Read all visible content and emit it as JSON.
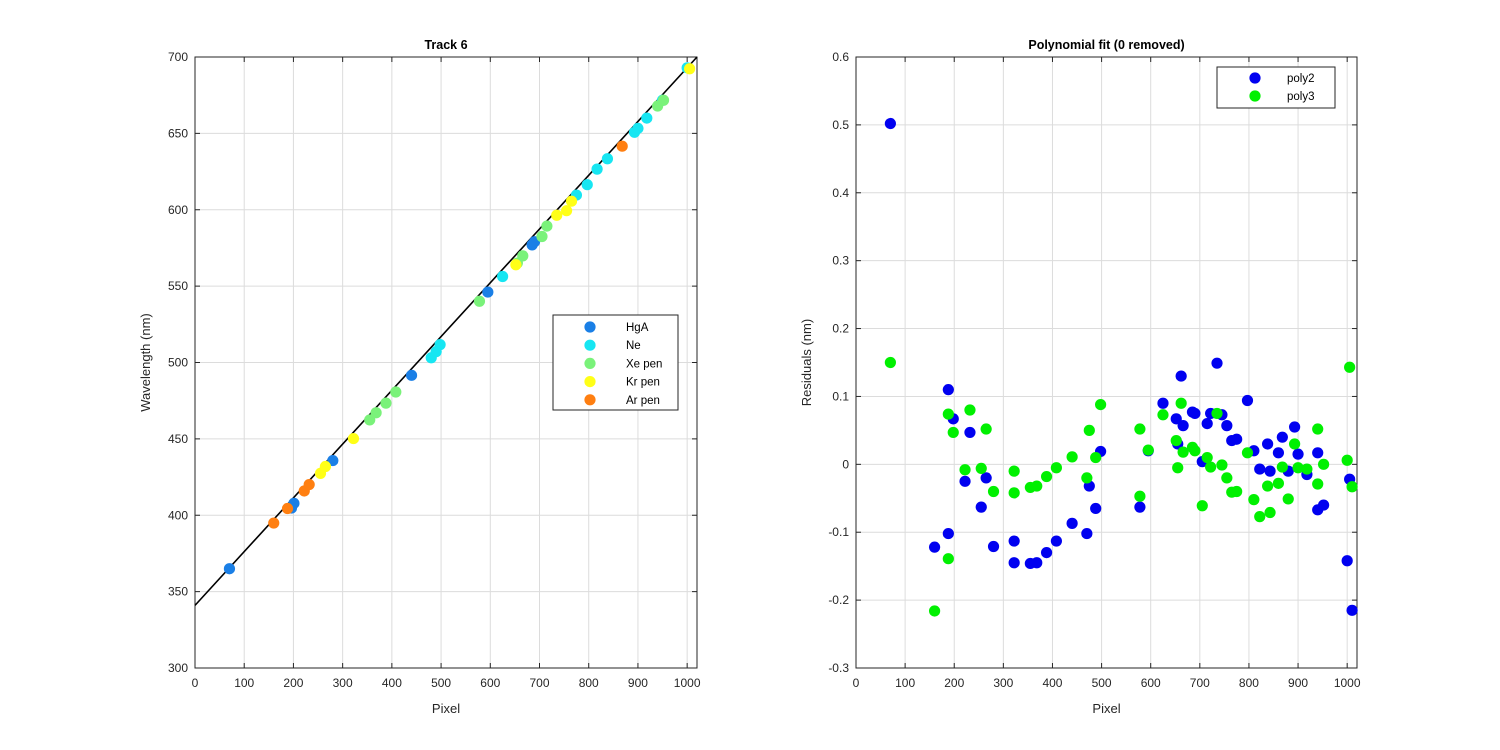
{
  "colors": {
    "HgA": "#1a7fe6",
    "Ne": "#17e6f2",
    "Xe pen": "#7af27a",
    "Kr pen": "#ffff17",
    "Ar pen": "#ff7f11",
    "poly2": "#0000f0",
    "poly3": "#00f000",
    "fit_line": "#000000",
    "grid": "#dcdcdc"
  },
  "chart_data": [
    {
      "type": "scatter",
      "title": "Track 6",
      "xlabel": "Pixel",
      "ylabel": "Wavelength (nm)",
      "xlim": [
        0,
        1020
      ],
      "ylim": [
        300,
        700
      ],
      "xticks": [
        0,
        100,
        200,
        300,
        400,
        500,
        600,
        700,
        800,
        900,
        1000
      ],
      "yticks": [
        300,
        350,
        400,
        450,
        500,
        550,
        600,
        650,
        700
      ],
      "grid": true,
      "legend_position": "right",
      "series": [
        {
          "name": "HgA",
          "points": [
            [
              70,
              365.0
            ],
            [
              196,
              404.7
            ],
            [
              201,
              407.8
            ],
            [
              280,
              435.8
            ],
            [
              440,
              491.6
            ],
            [
              595,
              546.1
            ],
            [
              685,
              577.0
            ],
            [
              690,
              579.1
            ]
          ]
        },
        {
          "name": "Ne",
          "points": [
            [
              480,
              503.1
            ],
            [
              490,
              507.1
            ],
            [
              498,
              511.7
            ],
            [
              625,
              556.3
            ],
            [
              775,
              609.6
            ],
            [
              797,
              616.4
            ],
            [
              817,
              626.6
            ],
            [
              838,
              633.4
            ],
            [
              893,
              650.7
            ],
            [
              900,
              653.3
            ],
            [
              918,
              660.0
            ],
            [
              950,
              671.7
            ],
            [
              1000,
              692.9
            ]
          ]
        },
        {
          "name": "Xe pen",
          "points": [
            [
              355,
              462.4
            ],
            [
              368,
              467.1
            ],
            [
              388,
              473.4
            ],
            [
              408,
              480.7
            ],
            [
              578,
              540.1
            ],
            [
              655,
              565.1
            ],
            [
              666,
              569.8
            ],
            [
              705,
              582.5
            ],
            [
              715,
              589.3
            ],
            [
              940,
              667.9
            ],
            [
              952,
              671.7
            ]
          ]
        },
        {
          "name": "Kr pen",
          "points": [
            [
              255,
              427.4
            ],
            [
              265,
              431.9
            ],
            [
              322,
              450.2
            ],
            [
              652,
              564.0
            ],
            [
              735,
              596.4
            ],
            [
              755,
              599.4
            ],
            [
              765,
              605.6
            ],
            [
              1005,
              692.3
            ]
          ]
        },
        {
          "name": "Ar pen",
          "points": [
            [
              160,
              394.9
            ],
            [
              188,
              404.4
            ],
            [
              222,
              415.9
            ],
            [
              232,
              420.1
            ],
            [
              868,
              641.6
            ]
          ]
        }
      ],
      "fit_line": {
        "x": [
          0,
          1020
        ],
        "y": [
          341.0,
          700.0
        ]
      }
    },
    {
      "type": "scatter",
      "title": "Polynomial fit  (0 removed)",
      "xlabel": "Pixel",
      "ylabel": "Residuals (nm)",
      "xlim": [
        0,
        1020
      ],
      "ylim": [
        -0.3,
        0.6
      ],
      "xticks": [
        0,
        100,
        200,
        300,
        400,
        500,
        600,
        700,
        800,
        900,
        1000
      ],
      "yticks": [
        -0.3,
        -0.2,
        -0.1,
        0,
        0.1,
        0.2,
        0.3,
        0.4,
        0.5,
        0.6
      ],
      "ytick_labels": [
        "-0.3",
        "-0.2",
        "-0.1",
        "0",
        "0.1",
        "0.2",
        "0.3",
        "0.4",
        "0.5",
        "0.6"
      ],
      "grid": true,
      "legend_position": "top-right",
      "series": [
        {
          "name": "poly2",
          "points": [
            [
              70,
              0.502
            ],
            [
              160,
              -0.122
            ],
            [
              188,
              0.11
            ],
            [
              188,
              -0.102
            ],
            [
              198,
              0.067
            ],
            [
              222,
              -0.025
            ],
            [
              232,
              0.047
            ],
            [
              255,
              -0.063
            ],
            [
              265,
              -0.02
            ],
            [
              280,
              -0.121
            ],
            [
              322,
              -0.113
            ],
            [
              322,
              -0.145
            ],
            [
              355,
              -0.146
            ],
            [
              368,
              -0.145
            ],
            [
              388,
              -0.13
            ],
            [
              408,
              -0.113
            ],
            [
              440,
              -0.087
            ],
            [
              470,
              -0.102
            ],
            [
              475,
              -0.032
            ],
            [
              488,
              -0.065
            ],
            [
              498,
              0.019
            ],
            [
              578,
              -0.063
            ],
            [
              595,
              0.02
            ],
            [
              625,
              0.09
            ],
            [
              652,
              0.067
            ],
            [
              655,
              0.03
            ],
            [
              662,
              0.13
            ],
            [
              666,
              0.057
            ],
            [
              685,
              0.077
            ],
            [
              690,
              0.075
            ],
            [
              705,
              0.004
            ],
            [
              715,
              0.06
            ],
            [
              722,
              0.075
            ],
            [
              735,
              0.149
            ],
            [
              745,
              0.073
            ],
            [
              755,
              0.057
            ],
            [
              765,
              0.035
            ],
            [
              775,
              0.037
            ],
            [
              797,
              0.094
            ],
            [
              810,
              0.02
            ],
            [
              822,
              -0.007
            ],
            [
              838,
              0.03
            ],
            [
              843,
              -0.01
            ],
            [
              860,
              0.017
            ],
            [
              868,
              0.04
            ],
            [
              880,
              -0.01
            ],
            [
              893,
              0.055
            ],
            [
              900,
              0.015
            ],
            [
              918,
              -0.015
            ],
            [
              940,
              0.017
            ],
            [
              940,
              -0.067
            ],
            [
              952,
              -0.06
            ],
            [
              1000,
              -0.142
            ],
            [
              1005,
              -0.022
            ],
            [
              1010,
              -0.215
            ]
          ]
        },
        {
          "name": "poly3",
          "points": [
            [
              70,
              0.15
            ],
            [
              160,
              -0.216
            ],
            [
              188,
              0.074
            ],
            [
              188,
              -0.139
            ],
            [
              198,
              0.047
            ],
            [
              222,
              -0.008
            ],
            [
              232,
              0.08
            ],
            [
              255,
              -0.006
            ],
            [
              265,
              0.052
            ],
            [
              280,
              -0.04
            ],
            [
              322,
              -0.01
            ],
            [
              322,
              -0.042
            ],
            [
              355,
              -0.034
            ],
            [
              368,
              -0.032
            ],
            [
              388,
              -0.018
            ],
            [
              408,
              -0.005
            ],
            [
              440,
              0.011
            ],
            [
              470,
              -0.02
            ],
            [
              475,
              0.05
            ],
            [
              488,
              0.01
            ],
            [
              498,
              0.088
            ],
            [
              578,
              -0.047
            ],
            [
              578,
              0.052
            ],
            [
              595,
              0.021
            ],
            [
              625,
              0.073
            ],
            [
              652,
              0.035
            ],
            [
              655,
              -0.005
            ],
            [
              662,
              0.09
            ],
            [
              666,
              0.018
            ],
            [
              685,
              0.025
            ],
            [
              690,
              0.02
            ],
            [
              705,
              -0.061
            ],
            [
              715,
              0.01
            ],
            [
              722,
              -0.004
            ],
            [
              735,
              0.075
            ],
            [
              745,
              -0.001
            ],
            [
              755,
              -0.02
            ],
            [
              765,
              -0.041
            ],
            [
              775,
              -0.04
            ],
            [
              797,
              0.017
            ],
            [
              810,
              -0.052
            ],
            [
              822,
              -0.077
            ],
            [
              838,
              -0.032
            ],
            [
              843,
              -0.071
            ],
            [
              860,
              -0.028
            ],
            [
              868,
              -0.004
            ],
            [
              880,
              -0.051
            ],
            [
              893,
              0.03
            ],
            [
              900,
              -0.005
            ],
            [
              918,
              -0.007
            ],
            [
              940,
              0.052
            ],
            [
              940,
              -0.029
            ],
            [
              952,
              0.0
            ],
            [
              1000,
              0.006
            ],
            [
              1005,
              0.143
            ],
            [
              1010,
              -0.033
            ]
          ]
        }
      ]
    }
  ]
}
